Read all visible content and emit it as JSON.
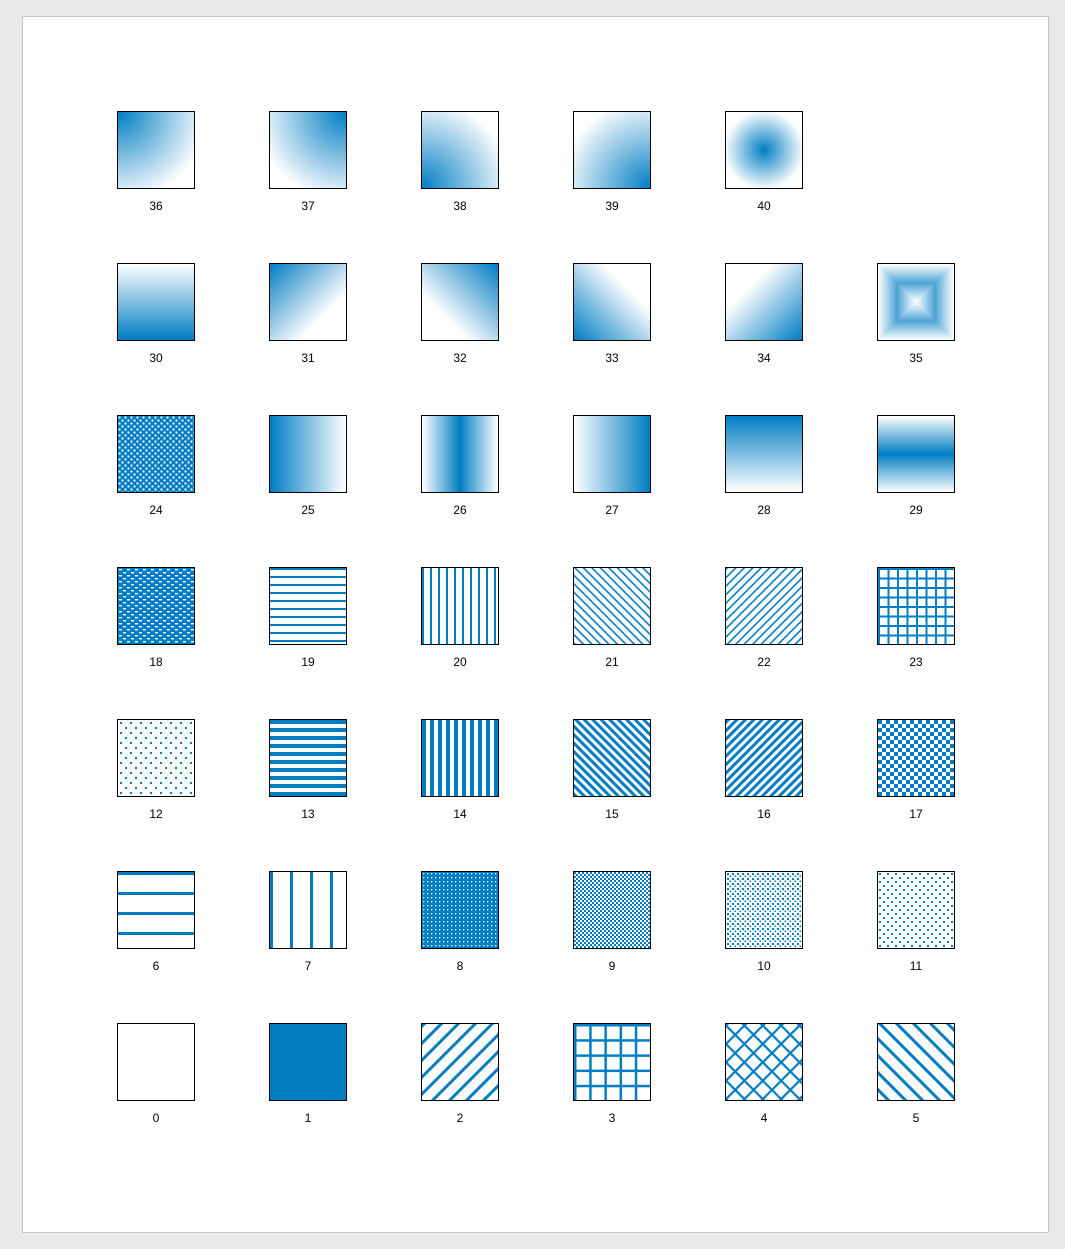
{
  "colors": {
    "accent": "#007dc3",
    "background": "#ffffff",
    "border": "#000000"
  },
  "rows": [
    [
      {
        "label": "36",
        "fill": "gradient-corner-top-left"
      },
      {
        "label": "37",
        "fill": "gradient-corner-top-right"
      },
      {
        "label": "38",
        "fill": "gradient-corner-bottom-left"
      },
      {
        "label": "39",
        "fill": "gradient-corner-bottom-right"
      },
      {
        "label": "40",
        "fill": "gradient-radial-center"
      }
    ],
    [
      {
        "label": "30",
        "fill": "gradient-vertical-bottom"
      },
      {
        "label": "31",
        "fill": "gradient-diagonal-top-left"
      },
      {
        "label": "32",
        "fill": "gradient-diagonal-top-right"
      },
      {
        "label": "33",
        "fill": "gradient-diagonal-bottom-left"
      },
      {
        "label": "34",
        "fill": "gradient-diagonal-bottom-right"
      },
      {
        "label": "35",
        "fill": "gradient-from-center-square"
      }
    ],
    [
      {
        "label": "24",
        "fill": "pattern-diamond-dots"
      },
      {
        "label": "25",
        "fill": "gradient-horizontal-left"
      },
      {
        "label": "26",
        "fill": "gradient-horizontal-center"
      },
      {
        "label": "27",
        "fill": "gradient-horizontal-right"
      },
      {
        "label": "28",
        "fill": "gradient-vertical-top"
      },
      {
        "label": "29",
        "fill": "gradient-vertical-center"
      }
    ],
    [
      {
        "label": "18",
        "fill": "pattern-bricks-dense"
      },
      {
        "label": "19",
        "fill": "pattern-horizontal-lines-thin"
      },
      {
        "label": "20",
        "fill": "pattern-vertical-lines-thin"
      },
      {
        "label": "21",
        "fill": "pattern-diagonal-down-thin"
      },
      {
        "label": "22",
        "fill": "pattern-diagonal-up-thin"
      },
      {
        "label": "23",
        "fill": "pattern-grid-small"
      }
    ],
    [
      {
        "label": "12",
        "fill": "pattern-dots-sparse"
      },
      {
        "label": "13",
        "fill": "pattern-horizontal-lines-thick"
      },
      {
        "label": "14",
        "fill": "pattern-vertical-lines-thick"
      },
      {
        "label": "15",
        "fill": "pattern-diagonal-down-thick"
      },
      {
        "label": "16",
        "fill": "pattern-diagonal-up-thick"
      },
      {
        "label": "17",
        "fill": "pattern-checker-large"
      }
    ],
    [
      {
        "label": "6",
        "fill": "pattern-horizontal-lines-wide"
      },
      {
        "label": "7",
        "fill": "pattern-vertical-lines-wide"
      },
      {
        "label": "8",
        "fill": "pattern-dots-dense"
      },
      {
        "label": "9",
        "fill": "pattern-checker-small"
      },
      {
        "label": "10",
        "fill": "pattern-dots-medium"
      },
      {
        "label": "11",
        "fill": "pattern-dots-light"
      }
    ],
    [
      {
        "label": "0",
        "fill": "solid-none"
      },
      {
        "label": "1",
        "fill": "solid-accent"
      },
      {
        "label": "2",
        "fill": "pattern-diagonal-up-wide"
      },
      {
        "label": "3",
        "fill": "pattern-grid-large"
      },
      {
        "label": "4",
        "fill": "pattern-diagonal-cross"
      },
      {
        "label": "5",
        "fill": "pattern-diagonal-down-wide"
      }
    ]
  ]
}
